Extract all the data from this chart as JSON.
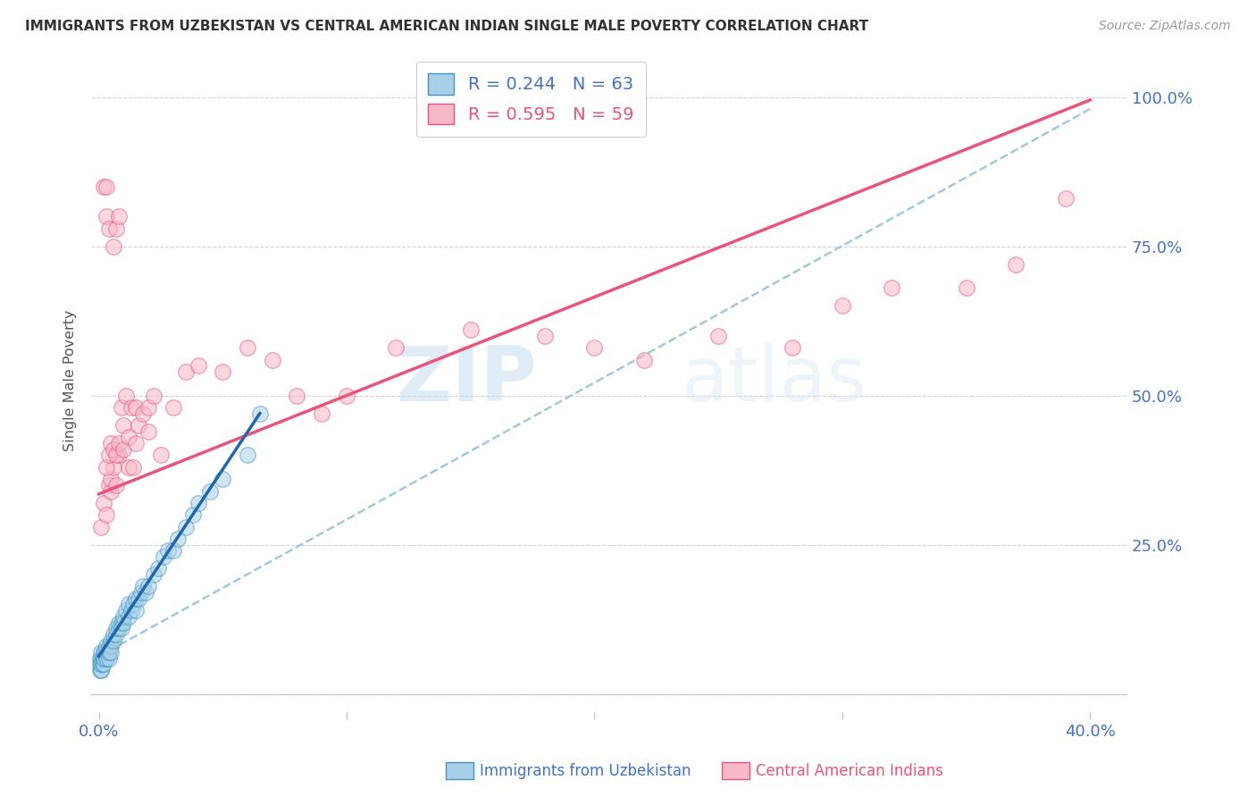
{
  "title": "IMMIGRANTS FROM UZBEKISTAN VS CENTRAL AMERICAN INDIAN SINGLE MALE POVERTY CORRELATION CHART",
  "source": "Source: ZipAtlas.com",
  "ylabel": "Single Male Poverty",
  "blue_color": "#a8d1e8",
  "pink_color": "#f9b8c8",
  "blue_edge_color": "#4393c3",
  "pink_edge_color": "#e8547a",
  "blue_line_color": "#2166ac",
  "pink_line_color": "#e8547a",
  "dashed_line_color": "#9ecae1",
  "watermark_zip": "ZIP",
  "watermark_atlas": "atlas",
  "legend_blue_r": "R = 0.244",
  "legend_blue_n": "N = 63",
  "legend_pink_r": "R = 0.595",
  "legend_pink_n": "N = 59",
  "xlim": [
    -0.003,
    0.415
  ],
  "ylim": [
    -0.03,
    1.08
  ],
  "blue_scatter_x": [
    0.0005,
    0.0006,
    0.0007,
    0.0008,
    0.0009,
    0.001,
    0.001,
    0.001,
    0.001,
    0.001,
    0.0015,
    0.0015,
    0.002,
    0.002,
    0.002,
    0.002,
    0.0025,
    0.003,
    0.003,
    0.003,
    0.003,
    0.004,
    0.004,
    0.004,
    0.004,
    0.005,
    0.005,
    0.005,
    0.006,
    0.006,
    0.007,
    0.007,
    0.008,
    0.008,
    0.009,
    0.009,
    0.01,
    0.01,
    0.011,
    0.012,
    0.012,
    0.013,
    0.014,
    0.015,
    0.015,
    0.016,
    0.017,
    0.018,
    0.019,
    0.02,
    0.022,
    0.024,
    0.026,
    0.028,
    0.03,
    0.032,
    0.035,
    0.038,
    0.04,
    0.045,
    0.05,
    0.06,
    0.065
  ],
  "blue_scatter_y": [
    0.05,
    0.04,
    0.06,
    0.05,
    0.04,
    0.05,
    0.06,
    0.07,
    0.04,
    0.05,
    0.06,
    0.05,
    0.06,
    0.07,
    0.05,
    0.06,
    0.07,
    0.06,
    0.07,
    0.08,
    0.06,
    0.07,
    0.08,
    0.06,
    0.07,
    0.08,
    0.09,
    0.07,
    0.09,
    0.1,
    0.1,
    0.11,
    0.11,
    0.12,
    0.12,
    0.11,
    0.12,
    0.13,
    0.14,
    0.13,
    0.15,
    0.14,
    0.15,
    0.14,
    0.16,
    0.16,
    0.17,
    0.18,
    0.17,
    0.18,
    0.2,
    0.21,
    0.23,
    0.24,
    0.24,
    0.26,
    0.28,
    0.3,
    0.32,
    0.34,
    0.36,
    0.4,
    0.47
  ],
  "pink_scatter_x": [
    0.001,
    0.002,
    0.002,
    0.003,
    0.003,
    0.003,
    0.004,
    0.004,
    0.005,
    0.005,
    0.006,
    0.006,
    0.007,
    0.007,
    0.008,
    0.008,
    0.009,
    0.01,
    0.011,
    0.012,
    0.013,
    0.014,
    0.015,
    0.016,
    0.018,
    0.02,
    0.022,
    0.025,
    0.03,
    0.035,
    0.04,
    0.05,
    0.06,
    0.07,
    0.08,
    0.09,
    0.1,
    0.12,
    0.15,
    0.18,
    0.2,
    0.22,
    0.25,
    0.28,
    0.3,
    0.32,
    0.35,
    0.37,
    0.39,
    0.003,
    0.004,
    0.005,
    0.006,
    0.007,
    0.008,
    0.01,
    0.012,
    0.015,
    0.02
  ],
  "pink_scatter_y": [
    0.28,
    0.32,
    0.85,
    0.85,
    0.8,
    0.3,
    0.35,
    0.78,
    0.34,
    0.36,
    0.75,
    0.38,
    0.78,
    0.35,
    0.4,
    0.8,
    0.48,
    0.45,
    0.5,
    0.38,
    0.48,
    0.38,
    0.48,
    0.45,
    0.47,
    0.48,
    0.5,
    0.4,
    0.48,
    0.54,
    0.55,
    0.54,
    0.58,
    0.56,
    0.5,
    0.47,
    0.5,
    0.58,
    0.61,
    0.6,
    0.58,
    0.56,
    0.6,
    0.58,
    0.65,
    0.68,
    0.68,
    0.72,
    0.83,
    0.38,
    0.4,
    0.42,
    0.41,
    0.4,
    0.42,
    0.41,
    0.43,
    0.42,
    0.44
  ],
  "pink_line_x0": 0.0,
  "pink_line_y0": 0.335,
  "pink_line_x1": 0.4,
  "pink_line_y1": 0.995,
  "blue_line_x0": 0.0,
  "blue_line_y0": 0.063,
  "blue_line_x1": 0.065,
  "blue_line_y1": 0.47,
  "dashed_line_x0": 0.0,
  "dashed_line_y0": 0.063,
  "dashed_line_x1": 0.4,
  "dashed_line_y1": 0.98
}
